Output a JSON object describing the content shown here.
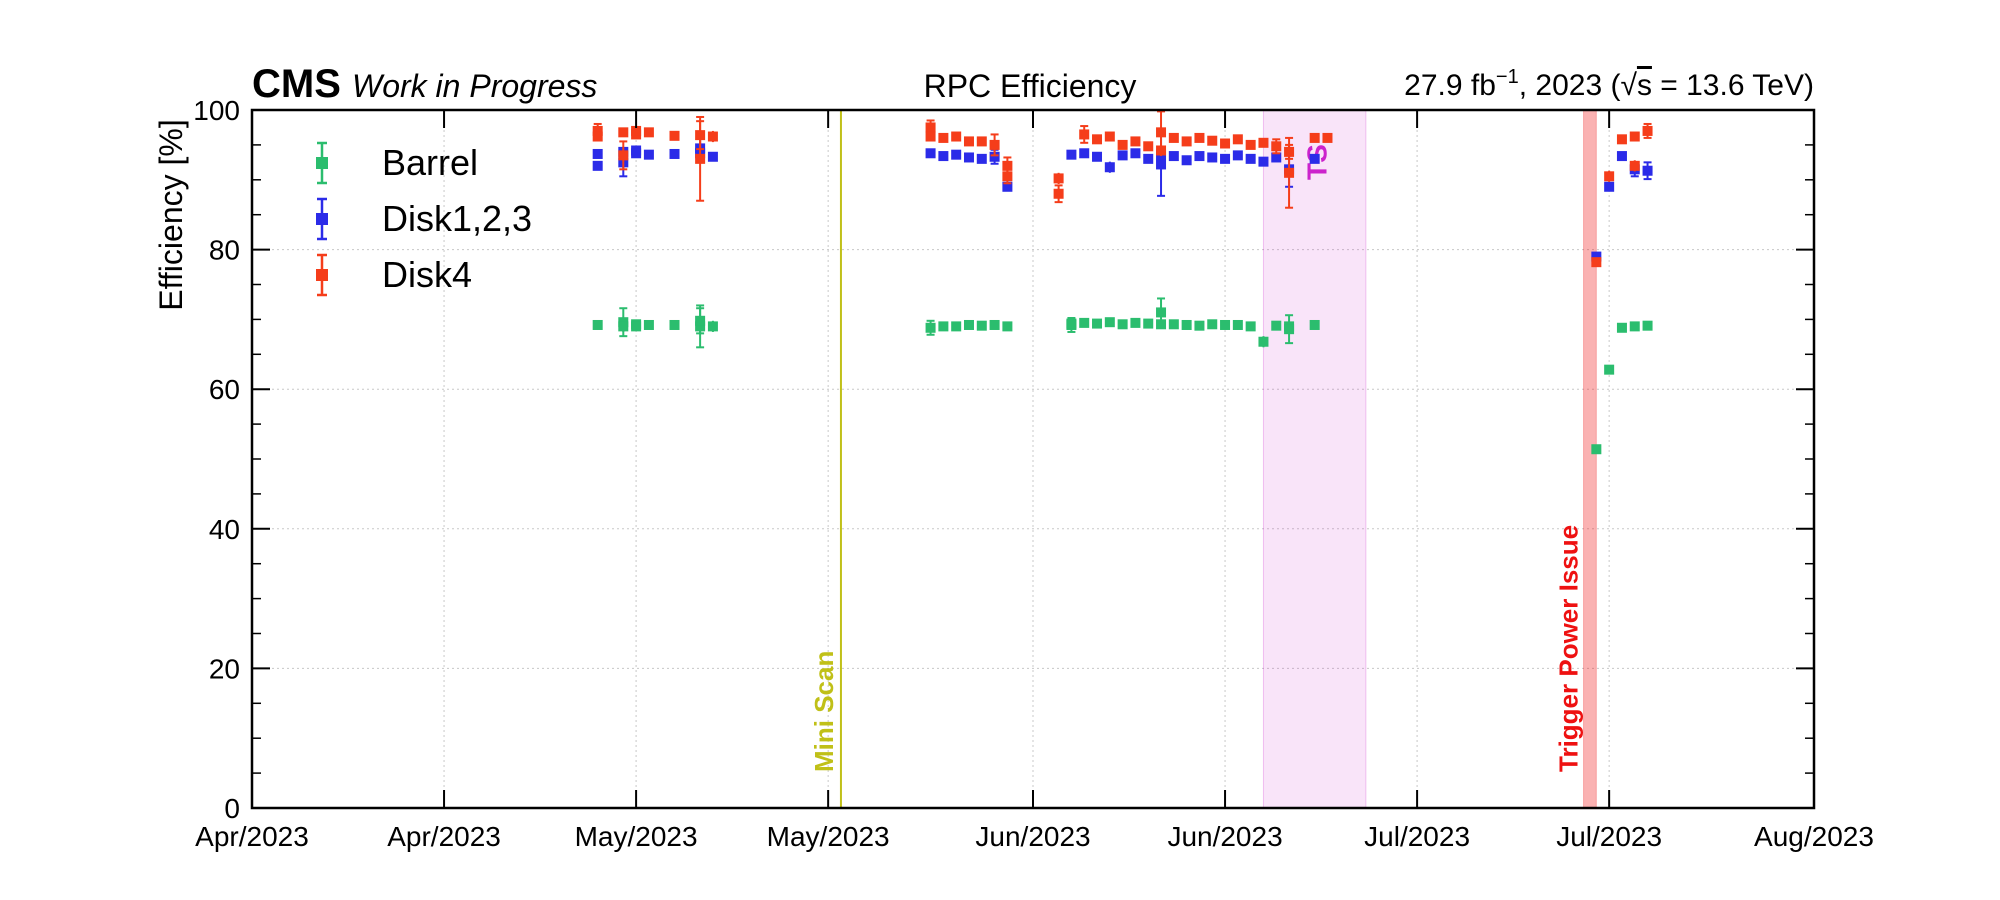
{
  "header": {
    "cms": "CMS",
    "wip": "Work in Progress",
    "center_title": "RPC Efficiency",
    "lumi_prefix": "27.9 fb",
    "lumi_exp": "−1",
    "lumi_mid": ", 2023 (",
    "sqrt_s": "s",
    "lumi_end": " = 13.6 TeV)"
  },
  "chart_data": {
    "type": "scatter",
    "title": "RPC Efficiency",
    "xlabel": "",
    "ylabel": "Efficiency [%]",
    "ylim": [
      0,
      100
    ],
    "xlim": [
      "2023-04-01",
      "2023-08-01"
    ],
    "y_ticks": [
      0,
      20,
      40,
      60,
      80,
      100
    ],
    "x_ticks": [
      {
        "date": "2023-04-01",
        "label": "Apr/2023"
      },
      {
        "date": "2023-04-16",
        "label": "Apr/2023"
      },
      {
        "date": "2023-05-01",
        "label": "May/2023"
      },
      {
        "date": "2023-05-16",
        "label": "May/2023"
      },
      {
        "date": "2023-06-01",
        "label": "Jun/2023"
      },
      {
        "date": "2023-06-16",
        "label": "Jun/2023"
      },
      {
        "date": "2023-07-01",
        "label": "Jul/2023"
      },
      {
        "date": "2023-07-16",
        "label": "Jul/2023"
      },
      {
        "date": "2023-08-01",
        "label": "Aug/2023"
      }
    ],
    "grid": true,
    "legend": "top-left",
    "series": [
      {
        "name": "Barrel",
        "color": "#2bbd6e",
        "points": [
          {
            "x": "2023-04-28",
            "y": 69.2,
            "err": 0.6
          },
          {
            "x": "2023-04-30",
            "y": 69.6,
            "err": 2.0
          },
          {
            "x": "2023-04-30",
            "y": 69.0,
            "err": 0.8
          },
          {
            "x": "2023-05-01",
            "y": 69.3,
            "err": 0.6
          },
          {
            "x": "2023-05-01",
            "y": 69.0,
            "err": 0.6
          },
          {
            "x": "2023-05-02",
            "y": 69.2,
            "err": 0.6
          },
          {
            "x": "2023-05-04",
            "y": 69.2,
            "err": 0.5
          },
          {
            "x": "2023-05-06",
            "y": 69.0,
            "err": 3.0
          },
          {
            "x": "2023-05-06",
            "y": 69.8,
            "err": 1.8
          },
          {
            "x": "2023-05-07",
            "y": 69.0,
            "err": 0.8
          },
          {
            "x": "2023-05-24",
            "y": 68.8,
            "err": 1.0
          },
          {
            "x": "2023-05-25",
            "y": 69.0,
            "err": 0.6
          },
          {
            "x": "2023-05-26",
            "y": 69.0,
            "err": 0.5
          },
          {
            "x": "2023-05-27",
            "y": 69.2,
            "err": 0.5
          },
          {
            "x": "2023-05-28",
            "y": 69.1,
            "err": 0.5
          },
          {
            "x": "2023-05-29",
            "y": 69.2,
            "err": 0.5
          },
          {
            "x": "2023-05-30",
            "y": 69.0,
            "err": 0.5
          },
          {
            "x": "2023-06-04",
            "y": 69.2,
            "err": 1.0
          },
          {
            "x": "2023-06-04",
            "y": 69.4,
            "err": 0.6
          },
          {
            "x": "2023-06-05",
            "y": 69.5,
            "err": 0.5
          },
          {
            "x": "2023-06-06",
            "y": 69.4,
            "err": 0.5
          },
          {
            "x": "2023-06-07",
            "y": 69.6,
            "err": 0.5
          },
          {
            "x": "2023-06-08",
            "y": 69.3,
            "err": 0.5
          },
          {
            "x": "2023-06-09",
            "y": 69.5,
            "err": 0.6
          },
          {
            "x": "2023-06-10",
            "y": 69.4,
            "err": 0.5
          },
          {
            "x": "2023-06-11",
            "y": 71.0,
            "err": 2.0
          },
          {
            "x": "2023-06-11",
            "y": 69.3,
            "err": 0.5
          },
          {
            "x": "2023-06-12",
            "y": 69.3,
            "err": 0.5
          },
          {
            "x": "2023-06-13",
            "y": 69.2,
            "err": 0.5
          },
          {
            "x": "2023-06-14",
            "y": 69.1,
            "err": 0.5
          },
          {
            "x": "2023-06-15",
            "y": 69.3,
            "err": 0.5
          },
          {
            "x": "2023-06-16",
            "y": 69.2,
            "err": 0.5
          },
          {
            "x": "2023-06-17",
            "y": 69.2,
            "err": 0.5
          },
          {
            "x": "2023-06-18",
            "y": 69.0,
            "err": 0.5
          },
          {
            "x": "2023-06-19",
            "y": 66.8,
            "err": 0.8
          },
          {
            "x": "2023-06-20",
            "y": 69.1,
            "err": 0.5
          },
          {
            "x": "2023-06-21",
            "y": 69.0,
            "err": 0.6
          },
          {
            "x": "2023-06-21",
            "y": 68.6,
            "err": 2.0
          },
          {
            "x": "2023-06-23",
            "y": 69.2,
            "err": 0.5
          },
          {
            "x": "2023-07-15",
            "y": 51.4,
            "err": 0.5
          },
          {
            "x": "2023-07-16",
            "y": 62.8,
            "err": 0.5
          },
          {
            "x": "2023-07-17",
            "y": 68.8,
            "err": 0.5
          },
          {
            "x": "2023-07-18",
            "y": 69.0,
            "err": 0.5
          },
          {
            "x": "2023-07-19",
            "y": 69.1,
            "err": 0.5
          }
        ]
      },
      {
        "name": "Disk1,2,3",
        "color": "#2b2be8",
        "points": [
          {
            "x": "2023-04-28",
            "y": 92.0,
            "err": 0.6
          },
          {
            "x": "2023-04-28",
            "y": 93.7,
            "err": 0.5
          },
          {
            "x": "2023-04-30",
            "y": 92.5,
            "err": 2.0
          },
          {
            "x": "2023-04-30",
            "y": 94.0,
            "err": 0.6
          },
          {
            "x": "2023-05-01",
            "y": 94.2,
            "err": 0.6
          },
          {
            "x": "2023-05-01",
            "y": 93.8,
            "err": 0.6
          },
          {
            "x": "2023-05-02",
            "y": 93.6,
            "err": 0.5
          },
          {
            "x": "2023-05-04",
            "y": 93.7,
            "err": 0.5
          },
          {
            "x": "2023-05-06",
            "y": 94.5,
            "err": 1.5
          },
          {
            "x": "2023-05-06",
            "y": 93.8,
            "err": 0.8
          },
          {
            "x": "2023-05-07",
            "y": 93.3,
            "err": 0.6
          },
          {
            "x": "2023-05-24",
            "y": 93.8,
            "err": 0.6
          },
          {
            "x": "2023-05-25",
            "y": 93.4,
            "err": 0.5
          },
          {
            "x": "2023-05-26",
            "y": 93.6,
            "err": 0.5
          },
          {
            "x": "2023-05-27",
            "y": 93.2,
            "err": 0.5
          },
          {
            "x": "2023-05-28",
            "y": 93.0,
            "err": 0.5
          },
          {
            "x": "2023-05-29",
            "y": 93.3,
            "err": 1.0
          },
          {
            "x": "2023-05-30",
            "y": 89.0,
            "err": 0.6
          },
          {
            "x": "2023-06-04",
            "y": 93.6,
            "err": 0.5
          },
          {
            "x": "2023-06-05",
            "y": 93.8,
            "err": 0.5
          },
          {
            "x": "2023-06-06",
            "y": 93.3,
            "err": 0.5
          },
          {
            "x": "2023-06-07",
            "y": 91.8,
            "err": 0.8
          },
          {
            "x": "2023-06-08",
            "y": 93.5,
            "err": 0.5
          },
          {
            "x": "2023-06-09",
            "y": 93.8,
            "err": 0.5
          },
          {
            "x": "2023-06-10",
            "y": 93.0,
            "err": 0.5
          },
          {
            "x": "2023-06-11",
            "y": 92.2,
            "err": 4.5
          },
          {
            "x": "2023-06-11",
            "y": 93.6,
            "err": 0.5
          },
          {
            "x": "2023-06-12",
            "y": 93.4,
            "err": 0.5
          },
          {
            "x": "2023-06-13",
            "y": 92.8,
            "err": 0.5
          },
          {
            "x": "2023-06-14",
            "y": 93.4,
            "err": 0.5
          },
          {
            "x": "2023-06-15",
            "y": 93.2,
            "err": 0.5
          },
          {
            "x": "2023-06-16",
            "y": 93.0,
            "err": 0.5
          },
          {
            "x": "2023-06-17",
            "y": 93.5,
            "err": 0.5
          },
          {
            "x": "2023-06-18",
            "y": 93.0,
            "err": 0.5
          },
          {
            "x": "2023-06-19",
            "y": 92.6,
            "err": 0.5
          },
          {
            "x": "2023-06-20",
            "y": 93.2,
            "err": 0.5
          },
          {
            "x": "2023-06-21",
            "y": 91.5,
            "err": 2.5
          },
          {
            "x": "2023-06-23",
            "y": 93.0,
            "err": 0.5
          },
          {
            "x": "2023-07-15",
            "y": 79.0,
            "err": 0.5
          },
          {
            "x": "2023-07-16",
            "y": 89.0,
            "err": 0.5
          },
          {
            "x": "2023-07-17",
            "y": 93.4,
            "err": 0.5
          },
          {
            "x": "2023-07-18",
            "y": 91.5,
            "err": 1.0
          },
          {
            "x": "2023-07-19",
            "y": 91.3,
            "err": 1.2
          }
        ]
      },
      {
        "name": "Disk4",
        "color": "#f53d1a",
        "points": [
          {
            "x": "2023-04-28",
            "y": 97.0,
            "err": 1.0
          },
          {
            "x": "2023-04-28",
            "y": 96.2,
            "err": 0.5
          },
          {
            "x": "2023-04-30",
            "y": 96.8,
            "err": 0.6
          },
          {
            "x": "2023-04-30",
            "y": 93.5,
            "err": 2.0
          },
          {
            "x": "2023-05-01",
            "y": 96.5,
            "err": 0.6
          },
          {
            "x": "2023-05-01",
            "y": 97.0,
            "err": 0.6
          },
          {
            "x": "2023-05-02",
            "y": 96.8,
            "err": 0.5
          },
          {
            "x": "2023-05-04",
            "y": 96.3,
            "err": 0.5
          },
          {
            "x": "2023-05-06",
            "y": 96.4,
            "err": 2.0
          },
          {
            "x": "2023-05-06",
            "y": 93.0,
            "err": 6.0
          },
          {
            "x": "2023-05-07",
            "y": 96.2,
            "err": 0.8
          },
          {
            "x": "2023-05-24",
            "y": 97.5,
            "err": 1.0
          },
          {
            "x": "2023-05-24",
            "y": 96.2,
            "err": 0.6
          },
          {
            "x": "2023-05-25",
            "y": 96.0,
            "err": 0.5
          },
          {
            "x": "2023-05-26",
            "y": 96.2,
            "err": 0.5
          },
          {
            "x": "2023-05-27",
            "y": 95.5,
            "err": 0.5
          },
          {
            "x": "2023-05-28",
            "y": 95.5,
            "err": 0.6
          },
          {
            "x": "2023-05-29",
            "y": 95.0,
            "err": 1.5
          },
          {
            "x": "2023-05-30",
            "y": 92.0,
            "err": 1.2
          },
          {
            "x": "2023-05-30",
            "y": 90.5,
            "err": 1.0
          },
          {
            "x": "2023-06-03",
            "y": 90.2,
            "err": 0.8
          },
          {
            "x": "2023-06-03",
            "y": 88.0,
            "err": 1.2
          },
          {
            "x": "2023-06-05",
            "y": 96.5,
            "err": 1.2
          },
          {
            "x": "2023-06-06",
            "y": 95.8,
            "err": 0.5
          },
          {
            "x": "2023-06-07",
            "y": 96.2,
            "err": 0.5
          },
          {
            "x": "2023-06-08",
            "y": 95.0,
            "err": 0.5
          },
          {
            "x": "2023-06-09",
            "y": 95.5,
            "err": 0.6
          },
          {
            "x": "2023-06-10",
            "y": 94.8,
            "err": 0.6
          },
          {
            "x": "2023-06-11",
            "y": 96.8,
            "err": 3.0
          },
          {
            "x": "2023-06-11",
            "y": 94.2,
            "err": 0.8
          },
          {
            "x": "2023-06-12",
            "y": 96.0,
            "err": 0.5
          },
          {
            "x": "2023-06-13",
            "y": 95.5,
            "err": 0.5
          },
          {
            "x": "2023-06-14",
            "y": 96.0,
            "err": 0.5
          },
          {
            "x": "2023-06-15",
            "y": 95.6,
            "err": 0.5
          },
          {
            "x": "2023-06-16",
            "y": 95.2,
            "err": 0.5
          },
          {
            "x": "2023-06-17",
            "y": 95.8,
            "err": 0.5
          },
          {
            "x": "2023-06-18",
            "y": 95.0,
            "err": 0.6
          },
          {
            "x": "2023-06-19",
            "y": 95.3,
            "err": 0.5
          },
          {
            "x": "2023-06-20",
            "y": 94.8,
            "err": 1.0
          },
          {
            "x": "2023-06-21",
            "y": 91.0,
            "err": 5.0
          },
          {
            "x": "2023-06-21",
            "y": 94.0,
            "err": 1.0
          },
          {
            "x": "2023-06-23",
            "y": 96.0,
            "err": 0.5
          },
          {
            "x": "2023-06-24",
            "y": 96.0,
            "err": 0.5
          },
          {
            "x": "2023-07-15",
            "y": 78.2,
            "err": 0.5
          },
          {
            "x": "2023-07-16",
            "y": 90.5,
            "err": 0.8
          },
          {
            "x": "2023-07-17",
            "y": 95.8,
            "err": 0.5
          },
          {
            "x": "2023-07-18",
            "y": 92.0,
            "err": 0.8
          },
          {
            "x": "2023-07-18",
            "y": 96.2,
            "err": 0.6
          },
          {
            "x": "2023-07-19",
            "y": 97.0,
            "err": 1.0
          }
        ]
      }
    ],
    "annotations": [
      {
        "kind": "vline",
        "date": "2023-05-17",
        "label": "Mini Scan",
        "color": "#c0c018"
      },
      {
        "kind": "band",
        "from": "2023-06-19",
        "to": "2023-06-27",
        "label": "TS",
        "color": "#cc22cc"
      },
      {
        "kind": "band",
        "from": "2023-07-14",
        "to": "2023-07-15",
        "label": "Trigger Power Issue",
        "color": "#ee1111"
      }
    ]
  }
}
